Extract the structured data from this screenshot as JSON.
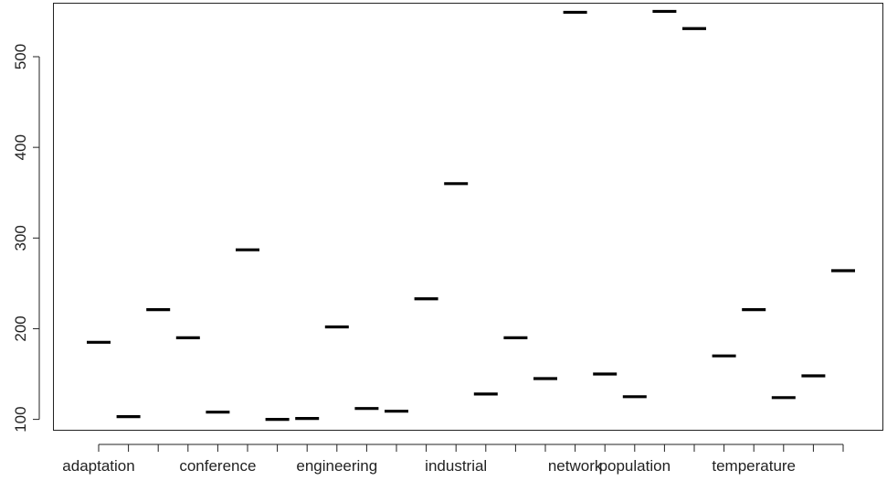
{
  "chart_data": {
    "type": "boxplot",
    "title": "",
    "xlabel": "",
    "ylabel": "",
    "ylim": [
      88,
      559
    ],
    "yticks": [
      100,
      200,
      300,
      400,
      500
    ],
    "x_tick_labels": [
      {
        "index": 1,
        "label": "adaptation"
      },
      {
        "index": 5,
        "label": "conference"
      },
      {
        "index": 9,
        "label": "engineering"
      },
      {
        "index": 13,
        "label": "industrial"
      },
      {
        "index": 17,
        "label": "network"
      },
      {
        "index": 19,
        "label": "population"
      },
      {
        "index": 23,
        "label": "temperature"
      }
    ],
    "n_groups": 26,
    "medians": [
      185,
      103,
      221,
      190,
      108,
      287,
      100,
      101,
      202,
      112,
      109,
      233,
      360,
      128,
      190,
      145,
      549,
      150,
      125,
      550,
      531,
      170,
      221,
      124,
      148,
      264
    ],
    "colors": {
      "median": "#000000",
      "axis": "#222222",
      "background": "#ffffff"
    }
  }
}
